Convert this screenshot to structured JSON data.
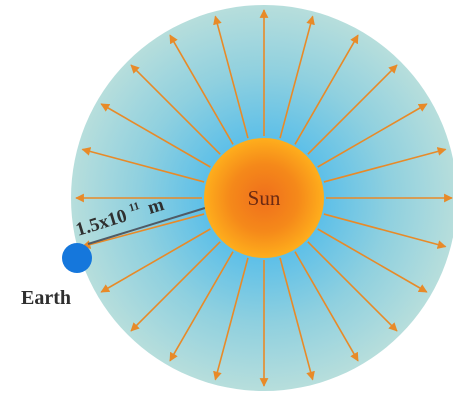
{
  "sun": {
    "label": "Sun"
  },
  "earth": {
    "label": "Earth"
  },
  "distance": {
    "base": "1.5x10",
    "exponent": "11",
    "unit": "m"
  },
  "arrows": {
    "count": 24
  },
  "colors": {
    "field_outer": "#a8d7d9",
    "field_inner": "#2fa9e6",
    "sun_core": "#ef6f1c",
    "sun_edge": "#ffb11c",
    "arrow": "#e88a28",
    "earth": "#1577dc"
  }
}
